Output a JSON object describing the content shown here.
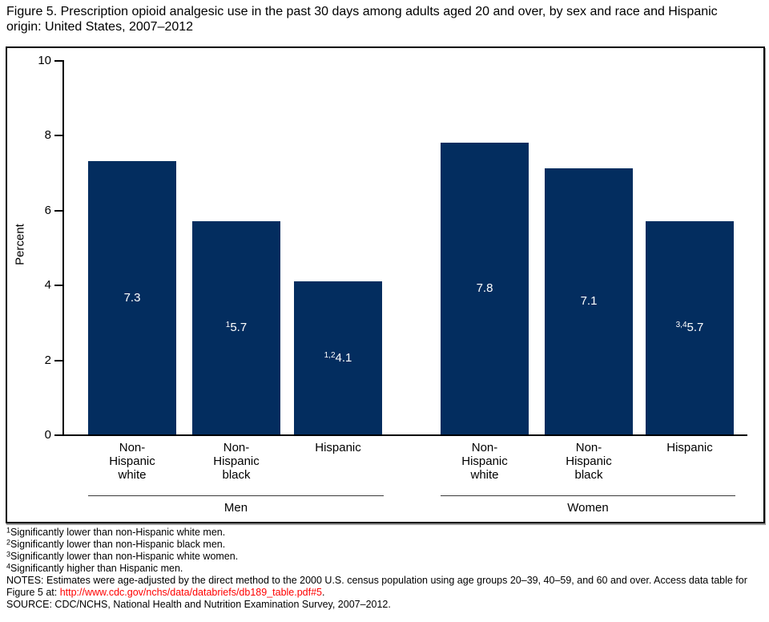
{
  "title": "Figure 5. Prescription opioid analgesic use in the past 30 days among adults aged 20 and over, by sex and race and Hispanic origin: United States, 2007–2012",
  "colors": {
    "bar": "#032d5f",
    "bar_label": "#ffffff",
    "link": "#ff0000",
    "axis": "#000000"
  },
  "chart_data": {
    "type": "bar",
    "title": "Figure 5. Prescription opioid analgesic use in the past 30 days among adults aged 20 and over, by sex and race and Hispanic origin: United States, 2007–2012",
    "xlabel": "",
    "ylabel": "Percent",
    "ylim": [
      0,
      10
    ],
    "yticks": [
      0,
      2,
      4,
      6,
      8,
      10
    ],
    "grid": false,
    "legend": "none",
    "groups": [
      {
        "label": "Men",
        "categories": [
          "Non-Hispanic white",
          "Non-Hispanic black",
          "Hispanic"
        ],
        "category_labels": [
          "Non-\nHispanic\nwhite",
          "Non-\nHispanic\nblack",
          "Hispanic"
        ],
        "values": [
          7.3,
          5.7,
          4.1
        ],
        "value_labels": [
          "7.3",
          "5.7",
          "4.1"
        ],
        "value_sups": [
          "",
          "1",
          "1,2"
        ]
      },
      {
        "label": "Women",
        "categories": [
          "Non-Hispanic white",
          "Non-Hispanic black",
          "Hispanic"
        ],
        "category_labels": [
          "Non-\nHispanic\nwhite",
          "Non-\nHispanic\nblack",
          "Hispanic"
        ],
        "values": [
          7.8,
          7.1,
          5.7
        ],
        "value_labels": [
          "7.8",
          "7.1",
          "5.7"
        ],
        "value_sups": [
          "",
          "",
          "3,4"
        ]
      }
    ]
  },
  "footnotes": [
    {
      "sup": "1",
      "text": "Significantly lower than non-Hispanic white men."
    },
    {
      "sup": "2",
      "text": "Significantly lower than non-Hispanic black men."
    },
    {
      "sup": "3",
      "text": "Significantly lower than non-Hispanic white women."
    },
    {
      "sup": "4",
      "text": "Significantly higher than Hispanic men."
    }
  ],
  "notes": {
    "text": "NOTES: Estimates were age-adjusted by the direct method to the 2000 U.S. census population using age groups 20–39, 40–59, and 60 and over. Access data table for Figure 5 at: ",
    "link": "http://www.cdc.gov/nchs/data/databriefs/db189_table.pdf#5",
    "suffix": "."
  },
  "source": "SOURCE: CDC/NCHS, National Health and Nutrition Examination Survey, 2007–2012."
}
